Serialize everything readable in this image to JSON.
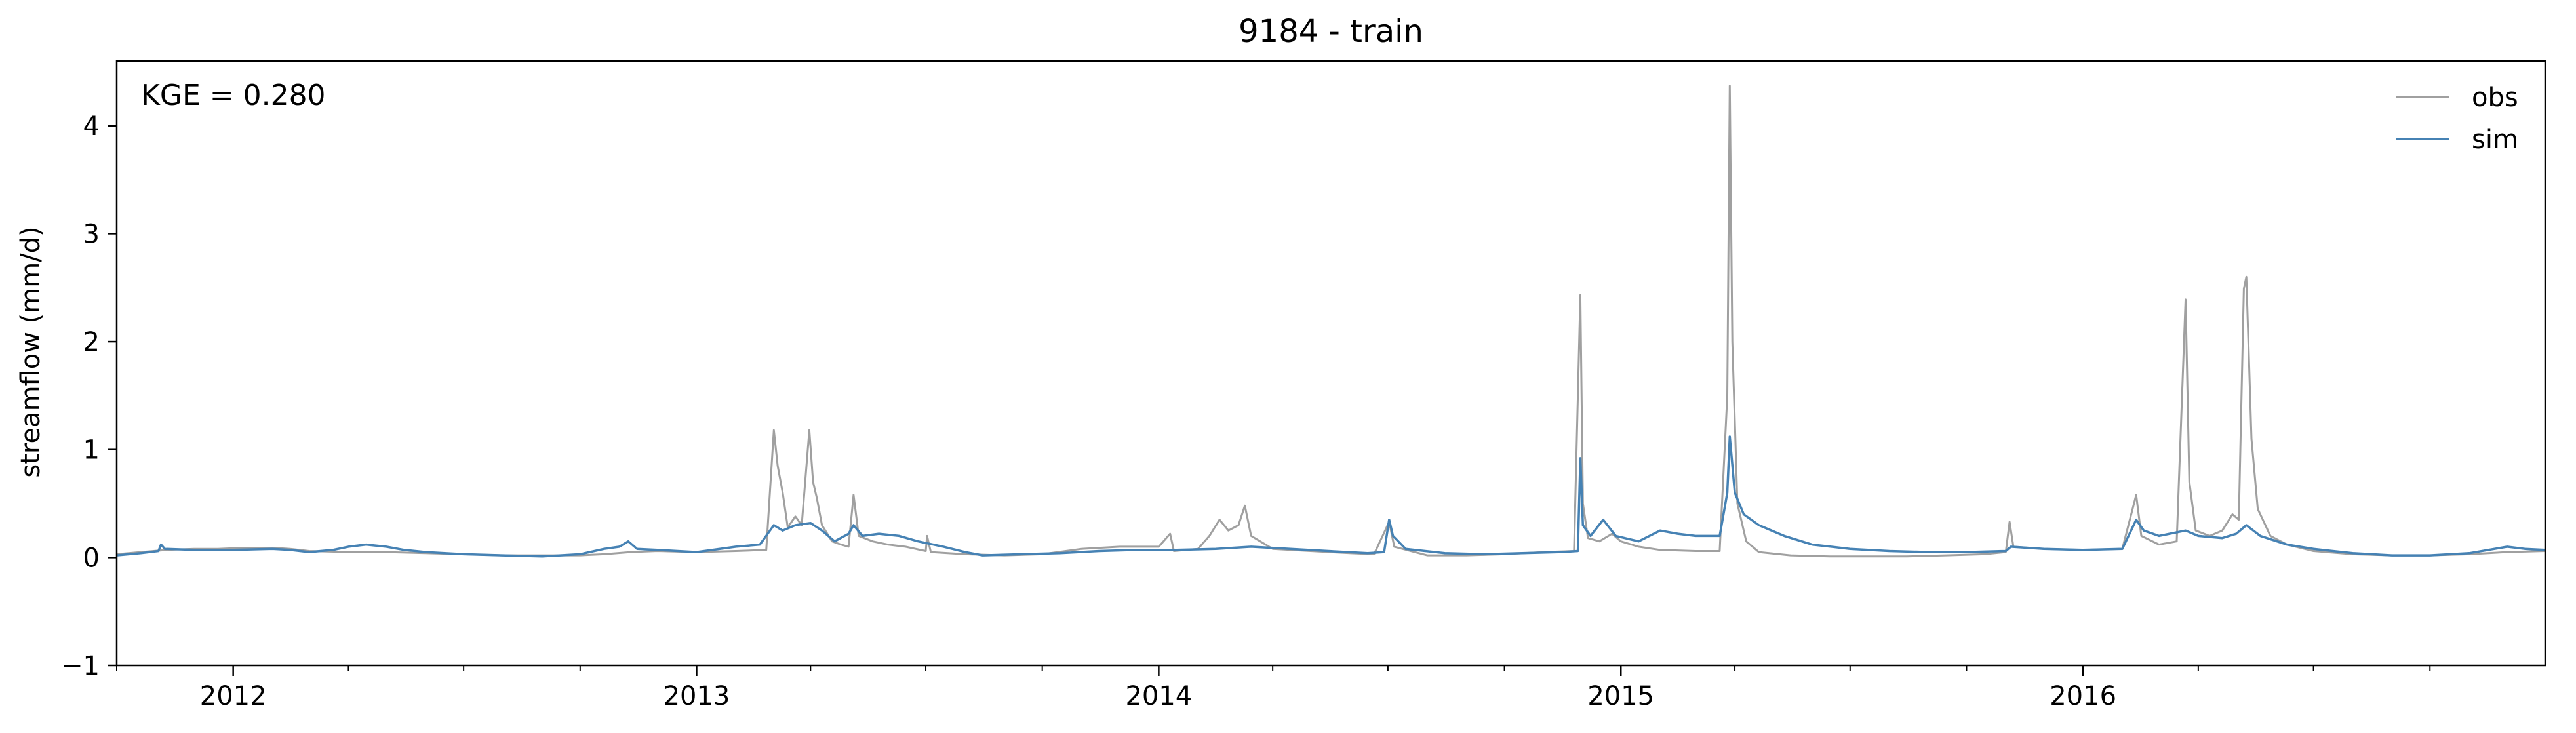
{
  "chart_data": {
    "type": "line",
    "title": "9184 - train",
    "xlabel": "",
    "ylabel": "streamflow (mm/d)",
    "xlim": [
      "2011-10-01",
      "2016-12-31"
    ],
    "ylim": [
      -1,
      4.6
    ],
    "y_ticks": [
      -1,
      0,
      1,
      2,
      3,
      4
    ],
    "y_tick_labels": [
      "−1",
      "0",
      "1",
      "2",
      "3",
      "4"
    ],
    "x_ticks": [
      "2012-01-01",
      "2013-01-01",
      "2014-01-01",
      "2015-01-01",
      "2016-01-01"
    ],
    "x_tick_labels": [
      "2012",
      "2013",
      "2014",
      "2015",
      "2016"
    ],
    "grid": false,
    "legend_position": "upper right",
    "annotation": "KGE = 0.280",
    "series": [
      {
        "name": "obs",
        "color": "#a0a0a0",
        "points": [
          [
            "2011-10-01",
            0.03
          ],
          [
            "2011-10-20",
            0.05
          ],
          [
            "2011-11-10",
            0.07
          ],
          [
            "2011-12-01",
            0.08
          ],
          [
            "2011-12-20",
            0.08
          ],
          [
            "2012-01-10",
            0.09
          ],
          [
            "2012-02-01",
            0.09
          ],
          [
            "2012-02-15",
            0.08
          ],
          [
            "2012-03-01",
            0.06
          ],
          [
            "2012-04-01",
            0.05
          ],
          [
            "2012-05-01",
            0.05
          ],
          [
            "2012-06-01",
            0.04
          ],
          [
            "2012-07-01",
            0.03
          ],
          [
            "2012-08-01",
            0.02
          ],
          [
            "2012-09-01",
            0.02
          ],
          [
            "2012-10-01",
            0.02
          ],
          [
            "2012-10-20",
            0.03
          ],
          [
            "2012-11-10",
            0.05
          ],
          [
            "2012-12-01",
            0.06
          ],
          [
            "2013-01-01",
            0.05
          ],
          [
            "2013-02-01",
            0.06
          ],
          [
            "2013-02-25",
            0.07
          ],
          [
            "2013-03-03",
            1.18
          ],
          [
            "2013-03-06",
            0.85
          ],
          [
            "2013-03-10",
            0.6
          ],
          [
            "2013-03-14",
            0.28
          ],
          [
            "2013-03-20",
            0.38
          ],
          [
            "2013-03-25",
            0.3
          ],
          [
            "2013-03-31",
            1.18
          ],
          [
            "2013-04-03",
            0.7
          ],
          [
            "2013-04-06",
            0.55
          ],
          [
            "2013-04-10",
            0.3
          ],
          [
            "2013-04-18",
            0.15
          ],
          [
            "2013-04-25",
            0.12
          ],
          [
            "2013-05-01",
            0.1
          ],
          [
            "2013-05-05",
            0.58
          ],
          [
            "2013-05-09",
            0.2
          ],
          [
            "2013-05-20",
            0.15
          ],
          [
            "2013-06-01",
            0.12
          ],
          [
            "2013-06-15",
            0.1
          ],
          [
            "2013-07-01",
            0.06
          ],
          [
            "2013-07-02",
            0.2
          ],
          [
            "2013-07-05",
            0.05
          ],
          [
            "2013-08-01",
            0.03
          ],
          [
            "2013-09-01",
            0.02
          ],
          [
            "2013-10-01",
            0.03
          ],
          [
            "2013-11-01",
            0.08
          ],
          [
            "2013-12-01",
            0.1
          ],
          [
            "2014-01-01",
            0.1
          ],
          [
            "2014-01-10",
            0.22
          ],
          [
            "2014-01-13",
            0.06
          ],
          [
            "2014-02-01",
            0.08
          ],
          [
            "2014-02-10",
            0.2
          ],
          [
            "2014-02-18",
            0.35
          ],
          [
            "2014-02-25",
            0.25
          ],
          [
            "2014-03-05",
            0.3
          ],
          [
            "2014-03-10",
            0.48
          ],
          [
            "2014-03-15",
            0.2
          ],
          [
            "2014-04-01",
            0.08
          ],
          [
            "2014-05-01",
            0.06
          ],
          [
            "2014-06-01",
            0.04
          ],
          [
            "2014-06-20",
            0.03
          ],
          [
            "2014-07-02",
            0.33
          ],
          [
            "2014-07-06",
            0.1
          ],
          [
            "2014-08-01",
            0.02
          ],
          [
            "2014-09-01",
            0.02
          ],
          [
            "2014-10-01",
            0.03
          ],
          [
            "2014-11-01",
            0.05
          ],
          [
            "2014-11-25",
            0.06
          ],
          [
            "2014-11-30",
            2.43
          ],
          [
            "2014-12-02",
            0.5
          ],
          [
            "2014-12-06",
            0.18
          ],
          [
            "2014-12-15",
            0.15
          ],
          [
            "2014-12-25",
            0.22
          ],
          [
            "2015-01-01",
            0.15
          ],
          [
            "2015-01-15",
            0.1
          ],
          [
            "2015-02-01",
            0.07
          ],
          [
            "2015-03-01",
            0.06
          ],
          [
            "2015-03-20",
            0.06
          ],
          [
            "2015-03-26",
            1.5
          ],
          [
            "2015-03-28",
            4.37
          ],
          [
            "2015-03-30",
            2.0
          ],
          [
            "2015-04-03",
            0.5
          ],
          [
            "2015-04-10",
            0.15
          ],
          [
            "2015-04-20",
            0.05
          ],
          [
            "2015-05-15",
            0.02
          ],
          [
            "2015-06-15",
            0.01
          ],
          [
            "2015-07-15",
            0.01
          ],
          [
            "2015-08-15",
            0.01
          ],
          [
            "2015-09-15",
            0.02
          ],
          [
            "2015-10-15",
            0.03
          ],
          [
            "2015-11-01",
            0.05
          ],
          [
            "2015-11-04",
            0.33
          ],
          [
            "2015-11-07",
            0.1
          ],
          [
            "2015-12-01",
            0.08
          ],
          [
            "2016-01-01",
            0.07
          ],
          [
            "2016-02-01",
            0.08
          ],
          [
            "2016-02-12",
            0.58
          ],
          [
            "2016-02-16",
            0.2
          ],
          [
            "2016-03-01",
            0.12
          ],
          [
            "2016-03-15",
            0.15
          ],
          [
            "2016-03-22",
            2.39
          ],
          [
            "2016-03-25",
            0.7
          ],
          [
            "2016-03-30",
            0.25
          ],
          [
            "2016-04-10",
            0.2
          ],
          [
            "2016-04-20",
            0.25
          ],
          [
            "2016-04-28",
            0.4
          ],
          [
            "2016-05-03",
            0.35
          ],
          [
            "2016-05-07",
            2.49
          ],
          [
            "2016-05-09",
            2.6
          ],
          [
            "2016-05-13",
            1.1
          ],
          [
            "2016-05-18",
            0.45
          ],
          [
            "2016-05-28",
            0.2
          ],
          [
            "2016-06-10",
            0.12
          ],
          [
            "2016-07-01",
            0.06
          ],
          [
            "2016-08-01",
            0.03
          ],
          [
            "2016-09-01",
            0.02
          ],
          [
            "2016-10-01",
            0.02
          ],
          [
            "2016-11-01",
            0.03
          ],
          [
            "2016-12-01",
            0.05
          ],
          [
            "2016-12-31",
            0.06
          ]
        ]
      },
      {
        "name": "sim",
        "color": "#4682b4",
        "points": [
          [
            "2011-10-01",
            0.02
          ],
          [
            "2011-10-20",
            0.04
          ],
          [
            "2011-11-03",
            0.06
          ],
          [
            "2011-11-05",
            0.12
          ],
          [
            "2011-11-08",
            0.08
          ],
          [
            "2011-12-01",
            0.07
          ],
          [
            "2012-01-01",
            0.07
          ],
          [
            "2012-02-01",
            0.08
          ],
          [
            "2012-02-15",
            0.07
          ],
          [
            "2012-03-01",
            0.05
          ],
          [
            "2012-03-20",
            0.07
          ],
          [
            "2012-04-01",
            0.1
          ],
          [
            "2012-04-15",
            0.12
          ],
          [
            "2012-05-01",
            0.1
          ],
          [
            "2012-05-15",
            0.07
          ],
          [
            "2012-06-01",
            0.05
          ],
          [
            "2012-07-01",
            0.03
          ],
          [
            "2012-08-01",
            0.02
          ],
          [
            "2012-09-01",
            0.01
          ],
          [
            "2012-10-01",
            0.03
          ],
          [
            "2012-10-20",
            0.08
          ],
          [
            "2012-11-01",
            0.1
          ],
          [
            "2012-11-08",
            0.15
          ],
          [
            "2012-11-15",
            0.08
          ],
          [
            "2012-12-01",
            0.07
          ],
          [
            "2013-01-01",
            0.05
          ],
          [
            "2013-02-01",
            0.1
          ],
          [
            "2013-02-20",
            0.12
          ],
          [
            "2013-03-03",
            0.3
          ],
          [
            "2013-03-10",
            0.25
          ],
          [
            "2013-03-20",
            0.3
          ],
          [
            "2013-04-01",
            0.32
          ],
          [
            "2013-04-10",
            0.25
          ],
          [
            "2013-04-20",
            0.15
          ],
          [
            "2013-05-01",
            0.22
          ],
          [
            "2013-05-05",
            0.3
          ],
          [
            "2013-05-12",
            0.2
          ],
          [
            "2013-05-25",
            0.22
          ],
          [
            "2013-06-10",
            0.2
          ],
          [
            "2013-06-25",
            0.15
          ],
          [
            "2013-07-15",
            0.1
          ],
          [
            "2013-08-01",
            0.05
          ],
          [
            "2013-08-15",
            0.02
          ],
          [
            "2013-09-15",
            0.03
          ],
          [
            "2013-10-15",
            0.04
          ],
          [
            "2013-11-15",
            0.06
          ],
          [
            "2013-12-15",
            0.07
          ],
          [
            "2014-01-15",
            0.07
          ],
          [
            "2014-02-15",
            0.08
          ],
          [
            "2014-03-15",
            0.1
          ],
          [
            "2014-04-15",
            0.08
          ],
          [
            "2014-05-15",
            0.06
          ],
          [
            "2014-06-15",
            0.04
          ],
          [
            "2014-06-28",
            0.05
          ],
          [
            "2014-07-02",
            0.35
          ],
          [
            "2014-07-05",
            0.2
          ],
          [
            "2014-07-15",
            0.08
          ],
          [
            "2014-08-15",
            0.04
          ],
          [
            "2014-09-15",
            0.03
          ],
          [
            "2014-10-15",
            0.04
          ],
          [
            "2014-11-15",
            0.05
          ],
          [
            "2014-11-28",
            0.06
          ],
          [
            "2014-11-30",
            0.92
          ],
          [
            "2014-12-02",
            0.3
          ],
          [
            "2014-12-08",
            0.2
          ],
          [
            "2014-12-18",
            0.35
          ],
          [
            "2014-12-28",
            0.2
          ],
          [
            "2015-01-15",
            0.15
          ],
          [
            "2015-02-01",
            0.25
          ],
          [
            "2015-02-15",
            0.22
          ],
          [
            "2015-03-01",
            0.2
          ],
          [
            "2015-03-20",
            0.2
          ],
          [
            "2015-03-26",
            0.6
          ],
          [
            "2015-03-28",
            1.12
          ],
          [
            "2015-04-01",
            0.6
          ],
          [
            "2015-04-08",
            0.4
          ],
          [
            "2015-04-20",
            0.3
          ],
          [
            "2015-05-10",
            0.2
          ],
          [
            "2015-06-01",
            0.12
          ],
          [
            "2015-07-01",
            0.08
          ],
          [
            "2015-08-01",
            0.06
          ],
          [
            "2015-09-01",
            0.05
          ],
          [
            "2015-10-01",
            0.05
          ],
          [
            "2015-11-01",
            0.06
          ],
          [
            "2015-11-05",
            0.1
          ],
          [
            "2015-12-01",
            0.08
          ],
          [
            "2016-01-01",
            0.07
          ],
          [
            "2016-02-01",
            0.08
          ],
          [
            "2016-02-12",
            0.35
          ],
          [
            "2016-02-18",
            0.25
          ],
          [
            "2016-03-01",
            0.2
          ],
          [
            "2016-03-22",
            0.25
          ],
          [
            "2016-04-01",
            0.2
          ],
          [
            "2016-04-20",
            0.18
          ],
          [
            "2016-05-01",
            0.22
          ],
          [
            "2016-05-09",
            0.3
          ],
          [
            "2016-05-20",
            0.2
          ],
          [
            "2016-06-10",
            0.12
          ],
          [
            "2016-07-01",
            0.08
          ],
          [
            "2016-08-01",
            0.04
          ],
          [
            "2016-09-01",
            0.02
          ],
          [
            "2016-10-01",
            0.02
          ],
          [
            "2016-11-01",
            0.04
          ],
          [
            "2016-12-01",
            0.1
          ],
          [
            "2016-12-15",
            0.08
          ],
          [
            "2016-12-31",
            0.07
          ]
        ]
      }
    ]
  }
}
